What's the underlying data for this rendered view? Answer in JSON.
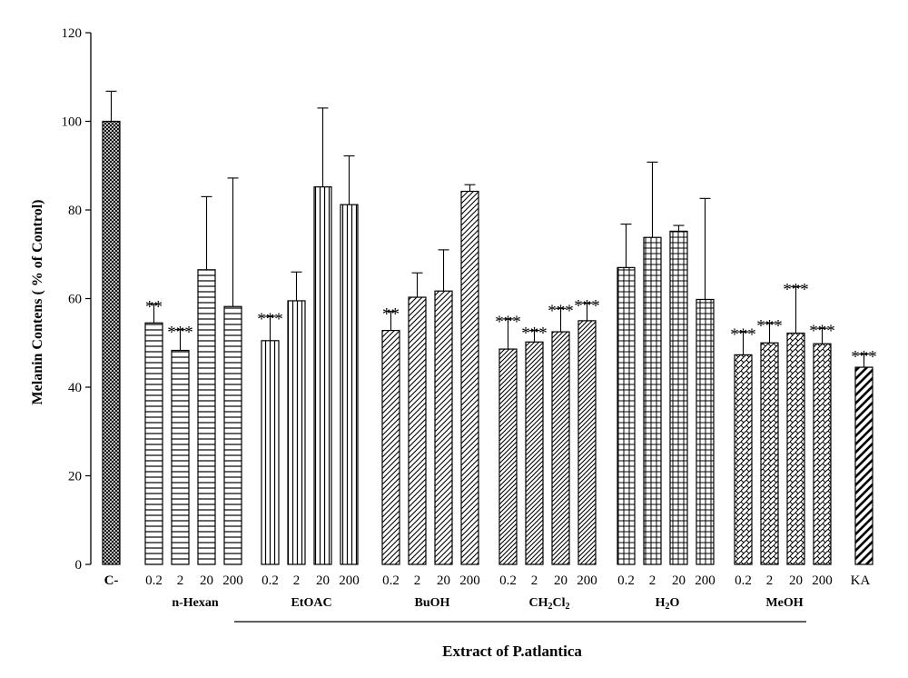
{
  "chart_data": {
    "type": "bar",
    "ylabel": "Melanin Contens ( % of Control)",
    "xlabel": "Extract of P.atlantica",
    "ylim": [
      0,
      120
    ],
    "yticks": [
      0,
      20,
      40,
      60,
      80,
      100,
      120
    ],
    "grid": false,
    "groups": [
      {
        "name": "",
        "pattern": "cross",
        "bars": [
          {
            "label": "C-",
            "value": 100,
            "err": 6.8,
            "sig": ""
          }
        ]
      },
      {
        "name": "n-Hexan",
        "pattern": "hline",
        "bars": [
          {
            "label": "0.2",
            "value": 54.5,
            "err": 4.3,
            "sig": "**"
          },
          {
            "label": "2",
            "value": 48.3,
            "err": 4.7,
            "sig": "***"
          },
          {
            "label": "20",
            "value": 66.5,
            "err": 16.5,
            "sig": ""
          },
          {
            "label": "200",
            "value": 58.2,
            "err": 29,
            "sig": ""
          }
        ]
      },
      {
        "name": "EtOAC",
        "pattern": "vline",
        "bars": [
          {
            "label": "0.2",
            "value": 50.5,
            "err": 5.5,
            "sig": "***"
          },
          {
            "label": "2",
            "value": 59.5,
            "err": 6.5,
            "sig": ""
          },
          {
            "label": "20",
            "value": 85.2,
            "err": 17.8,
            "sig": ""
          },
          {
            "label": "200",
            "value": 81.2,
            "err": 11,
            "sig": ""
          }
        ]
      },
      {
        "name": "BuOH",
        "pattern": "diag",
        "bars": [
          {
            "label": "0.2",
            "value": 52.8,
            "err": 4.3,
            "sig": "**"
          },
          {
            "label": "2",
            "value": 60.3,
            "err": 5.5,
            "sig": ""
          },
          {
            "label": "20",
            "value": 61.7,
            "err": 9.3,
            "sig": ""
          },
          {
            "label": "200",
            "value": 84.2,
            "err": 1.5,
            "sig": ""
          }
        ]
      },
      {
        "name": "CH2Cl2",
        "pattern": "diagdense",
        "bars": [
          {
            "label": "0.2",
            "value": 48.6,
            "err": 6.8,
            "sig": "***"
          },
          {
            "label": "2",
            "value": 50.2,
            "err": 2.6,
            "sig": "***"
          },
          {
            "label": "20",
            "value": 52.5,
            "err": 5.3,
            "sig": "***"
          },
          {
            "label": "200",
            "value": 55,
            "err": 4,
            "sig": "***"
          }
        ]
      },
      {
        "name": "H2O",
        "pattern": "grid",
        "bars": [
          {
            "label": "0.2",
            "value": 67,
            "err": 9.8,
            "sig": ""
          },
          {
            "label": "2",
            "value": 73.8,
            "err": 17,
            "sig": ""
          },
          {
            "label": "20",
            "value": 75.2,
            "err": 1.3,
            "sig": ""
          },
          {
            "label": "200",
            "value": 59.8,
            "err": 22.8,
            "sig": ""
          }
        ]
      },
      {
        "name": "MeOH",
        "pattern": "weave",
        "bars": [
          {
            "label": "0.2",
            "value": 47.3,
            "err": 5.2,
            "sig": "***"
          },
          {
            "label": "2",
            "value": 50,
            "err": 4.5,
            "sig": "***"
          },
          {
            "label": "20",
            "value": 52.2,
            "err": 10.5,
            "sig": "***"
          },
          {
            "label": "200",
            "value": 49.8,
            "err": 3.5,
            "sig": "***"
          }
        ]
      },
      {
        "name": "",
        "pattern": "widediag",
        "bars": [
          {
            "label": "KA",
            "value": 44.5,
            "err": 3,
            "sig": "***"
          }
        ]
      }
    ]
  }
}
